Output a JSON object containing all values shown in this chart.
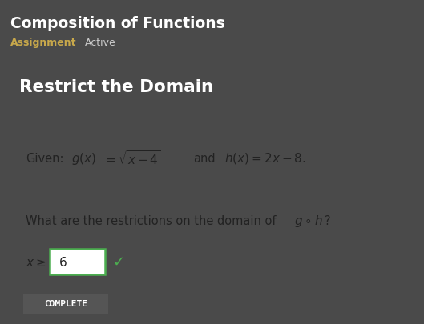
{
  "title": "Composition of Functions",
  "subtitle_left": "Assignment",
  "subtitle_right": "Active",
  "section_title": "Restrict the Domain",
  "button_text": "COMPLETE",
  "header_bg": "#4a4a4a",
  "section_bg": "#585858",
  "content_bg": "#ffffff",
  "title_color": "#ffffff",
  "subtitle_left_color": "#c8a84b",
  "subtitle_right_color": "#cccccc",
  "section_title_color": "#ffffff",
  "content_text_color": "#222222",
  "button_bg": "#555555",
  "button_text_color": "#ffffff",
  "input_border_color": "#4caf50",
  "checkmark_color": "#4caf50",
  "left_bar_color": "#4a90d9",
  "fig_width": 5.29,
  "fig_height": 4.06
}
